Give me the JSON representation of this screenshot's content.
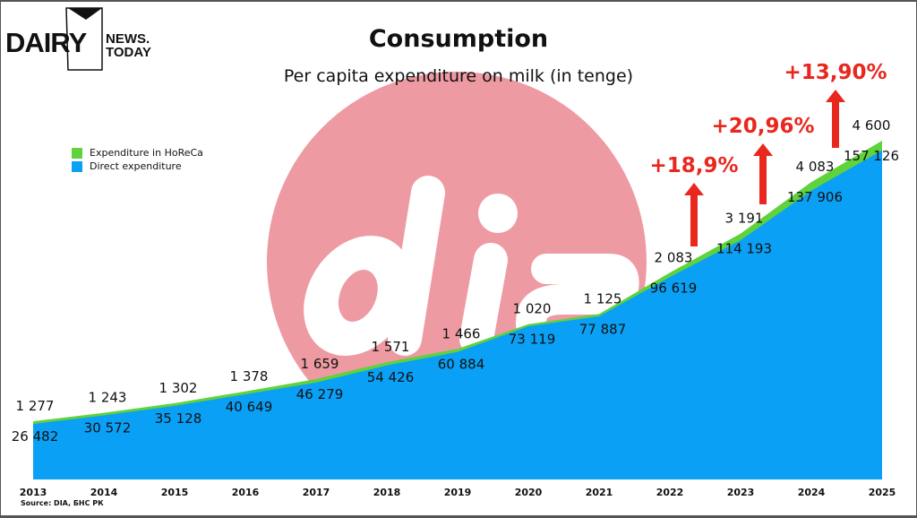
{
  "logo": {
    "text_main": "DAIRY",
    "text_top": "NEWS.",
    "text_bottom": "TODAY"
  },
  "watermark": {
    "text": "dia"
  },
  "source": "Source: DIA, БНС РК",
  "colors": {
    "direct": "#0aa0f5",
    "horeca": "#5fd23c",
    "watermark": "#ee9aa3",
    "growth": "#e8281e"
  },
  "chart_data": {
    "type": "area",
    "title": "Consumption",
    "subtitle": "Per capita expenditure on milk (in tenge)",
    "stacked": true,
    "categories": [
      "2013",
      "2014",
      "2015",
      "2016",
      "2017",
      "2018",
      "2019",
      "2020",
      "2021",
      "2022",
      "2023",
      "2024",
      "2025"
    ],
    "series": [
      {
        "name": "Direct expenditure",
        "values": [
          26482,
          30572,
          35128,
          40649,
          46279,
          54426,
          60884,
          73119,
          77887,
          96619,
          114193,
          137906,
          157126
        ],
        "labels": [
          "26 482",
          "30 572",
          "35 128",
          "40 649",
          "46 279",
          "54 426",
          "60 884",
          "73 119",
          "77 887",
          "96 619",
          "114 193",
          "137 906",
          "157 126"
        ]
      },
      {
        "name": "Expenditure in HoReCa",
        "values": [
          1277,
          1243,
          1302,
          1378,
          1659,
          1571,
          1466,
          1020,
          1125,
          2083,
          3191,
          4083,
          4600
        ],
        "labels": [
          "1 277",
          "1 243",
          "1 302",
          "1 378",
          "1 659",
          "1 571",
          "1 466",
          "1 020",
          "1 125",
          "2 083",
          "3 191",
          "4 083",
          "4 600"
        ]
      }
    ],
    "legend": [
      "Expenditure in HoReCa",
      "Direct expenditure"
    ],
    "legend_position": "left",
    "annotations": [
      {
        "text": "+18,9%",
        "year": "2022"
      },
      {
        "text": "+20,96%",
        "year": "2023"
      },
      {
        "text": "+13,90%",
        "year": "2024"
      }
    ],
    "ylim": [
      0,
      165000
    ],
    "grid": false
  }
}
